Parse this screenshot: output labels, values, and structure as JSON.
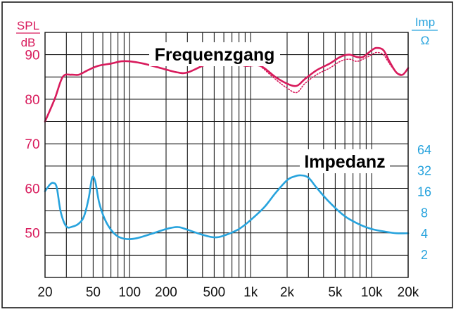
{
  "chart_data": {
    "type": "line",
    "xscale": "log",
    "xlim": [
      20,
      20000
    ],
    "x_ticks": [
      20,
      50,
      100,
      200,
      500,
      1000,
      2000,
      5000,
      10000,
      20000
    ],
    "x_tick_labels": [
      "20",
      "50",
      "100",
      "200",
      "500",
      "1k",
      "2k",
      "5k",
      "10k",
      "20k"
    ],
    "left_axis": {
      "unit_top": "SPL",
      "unit_bottom": "dB",
      "ylim": [
        40,
        95
      ],
      "ticks": [
        50,
        60,
        70,
        80,
        90
      ],
      "tick_labels": [
        "50",
        "60",
        "70",
        "80",
        "90"
      ],
      "color": "#d81b5c"
    },
    "right_axis": {
      "unit_top": "Imp",
      "unit_bottom": "Ω",
      "scale": "log2",
      "ticks": [
        2,
        4,
        8,
        16,
        32,
        64
      ],
      "tick_labels": [
        "2",
        "4",
        "8",
        "16",
        "32",
        "64"
      ],
      "color": "#27a3dd"
    },
    "annotations": [
      {
        "text": "Frequenzgang"
      },
      {
        "text": "Impedanz"
      }
    ],
    "series": [
      {
        "axis": "left",
        "color": "#d81b5c",
        "style": "solid",
        "x": [
          20,
          24,
          28,
          33,
          38,
          45,
          55,
          70,
          85,
          100,
          130,
          180,
          250,
          300,
          400,
          500,
          600,
          700,
          900,
          1200,
          1600,
          2000,
          2400,
          2800,
          3500,
          4500,
          5500,
          6500,
          7500,
          8500,
          10000,
          11000,
          12500,
          14000,
          16000,
          18000,
          20000
        ],
        "y": [
          75,
          80,
          85,
          85.5,
          85.5,
          86.5,
          87.5,
          88,
          88.5,
          88.5,
          88,
          87,
          86,
          86,
          87.5,
          88.5,
          89,
          88.5,
          87.5,
          87.5,
          85,
          83.5,
          83,
          84.5,
          86.5,
          88,
          89.5,
          90,
          89.5,
          89.5,
          91,
          91.5,
          91,
          88.5,
          86,
          85.5,
          87
        ]
      },
      {
        "axis": "left",
        "color": "#d81b5c",
        "style": "dotted",
        "x": [
          1200,
          1600,
          2000,
          2400,
          2800,
          3500,
          4500,
          5500,
          6500,
          7500,
          8500,
          10000,
          11000,
          12500,
          14000,
          16000,
          18000
        ],
        "y": [
          87.5,
          84.5,
          82.5,
          81.5,
          83.5,
          85.5,
          87,
          88.5,
          89,
          88.5,
          89,
          90,
          90.5,
          90,
          88,
          86,
          85.5
        ]
      },
      {
        "axis": "right",
        "color": "#27a3dd",
        "style": "solid",
        "x": [
          20,
          22,
          23.5,
          25,
          27,
          30,
          34,
          38,
          42,
          46,
          49,
          52,
          56,
          62,
          70,
          80,
          95,
          115,
          150,
          200,
          250,
          300,
          400,
          500,
          600,
          800,
          1000,
          1300,
          1600,
          2000,
          2300,
          2600,
          3000,
          3500,
          4500,
          6000,
          8000,
          10000,
          13000,
          16000,
          20000
        ],
        "y": [
          16,
          20,
          21,
          18,
          8,
          5,
          5,
          5.5,
          7,
          13,
          25,
          22,
          11,
          6.5,
          4.5,
          3.6,
          3.3,
          3.4,
          3.9,
          4.6,
          4.9,
          4.5,
          3.8,
          3.5,
          3.7,
          4.6,
          6.2,
          9.5,
          15,
          23,
          26,
          27,
          25,
          18,
          11,
          7,
          5.3,
          4.6,
          4.2,
          4.0,
          4.0
        ]
      }
    ]
  }
}
